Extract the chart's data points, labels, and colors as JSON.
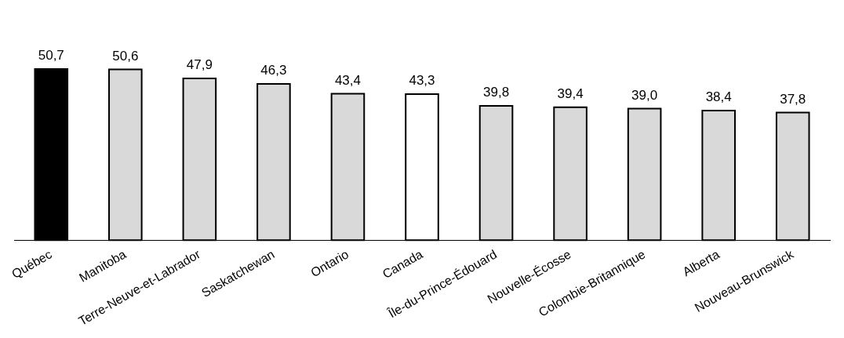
{
  "chart_data": {
    "type": "bar",
    "categories": [
      "Québec",
      "Manitoba",
      "Terre-Neuve-et-Labrador",
      "Saskatchewan",
      "Ontario",
      "Canada",
      "Île-du-Prince-Édouard",
      "Nouvelle-Écosse",
      "Colombie-Britannique",
      "Alberta",
      "Nouveau-Brunswick"
    ],
    "values": [
      50.7,
      50.6,
      47.9,
      46.3,
      43.4,
      43.3,
      39.8,
      39.4,
      39.0,
      38.4,
      37.8
    ],
    "value_labels": [
      "50,7",
      "50,6",
      "47,9",
      "46,3",
      "43,4",
      "43,3",
      "39,8",
      "39,4",
      "39,0",
      "38,4",
      "37,8"
    ],
    "colors": [
      "#000000",
      "#d9d9d9",
      "#d9d9d9",
      "#d9d9d9",
      "#d9d9d9",
      "#ffffff",
      "#d9d9d9",
      "#d9d9d9",
      "#d9d9d9",
      "#d9d9d9",
      "#d9d9d9"
    ],
    "grid": false,
    "tick_labels": "x",
    "legend": false
  }
}
